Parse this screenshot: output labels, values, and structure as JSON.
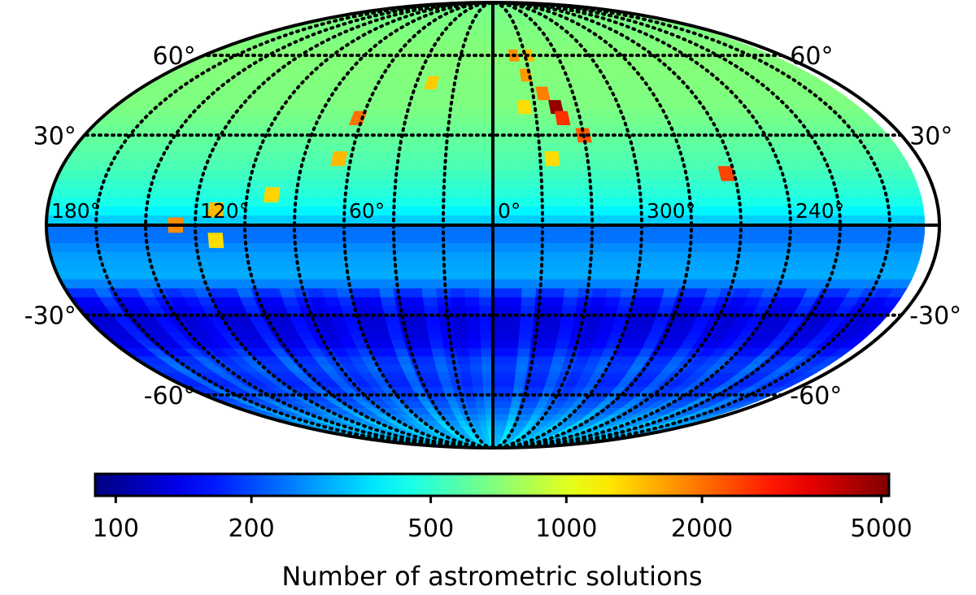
{
  "chart_data": {
    "type": "heatmap",
    "projection": "mollweide",
    "title": "",
    "colormap": "jet",
    "color_scale": "log",
    "value_range": [
      90,
      5200
    ],
    "colorbar": {
      "label": "Number of astrometric solutions",
      "ticks": [
        {
          "value": 100,
          "label": "100"
        },
        {
          "value": 200,
          "label": "200"
        },
        {
          "value": 500,
          "label": "500"
        },
        {
          "value": 1000,
          "label": "1000"
        },
        {
          "value": 2000,
          "label": "2000"
        },
        {
          "value": 5000,
          "label": "5000"
        }
      ]
    },
    "latitude_labels": [
      {
        "value": 60,
        "label": "60°"
      },
      {
        "value": 30,
        "label": "30°"
      },
      {
        "value": -30,
        "label": "-30°"
      },
      {
        "value": -60,
        "label": "-60°"
      }
    ],
    "longitude_labels": [
      {
        "value": 180,
        "label": "180°"
      },
      {
        "value": 120,
        "label": "120°"
      },
      {
        "value": 60,
        "label": "60°"
      },
      {
        "value": 0,
        "label": "0°"
      },
      {
        "value": 300,
        "label": "300°"
      },
      {
        "value": 240,
        "label": "240°"
      }
    ],
    "graticule": {
      "meridian_step_deg": 20,
      "parallels_deg": [
        -60,
        -30,
        30,
        60
      ],
      "style": "dotted"
    },
    "background_by_latitude": [
      {
        "lat": 90,
        "value": 650
      },
      {
        "lat": 60,
        "value": 700
      },
      {
        "lat": 40,
        "value": 680
      },
      {
        "lat": 20,
        "value": 560
      },
      {
        "lat": 8,
        "value": 460
      },
      {
        "lat": 2,
        "value": 360
      },
      {
        "lat": -2,
        "value": 220
      },
      {
        "lat": -10,
        "value": 280
      },
      {
        "lat": -18,
        "value": 300
      },
      {
        "lat": -24,
        "value": 150
      },
      {
        "lat": -32,
        "value": 125
      },
      {
        "lat": -40,
        "value": 135
      },
      {
        "lat": -48,
        "value": 190
      },
      {
        "lat": -55,
        "value": 170
      },
      {
        "lat": -65,
        "value": 210
      },
      {
        "lat": -75,
        "value": 280
      },
      {
        "lat": -90,
        "value": 330
      }
    ],
    "bright_regions": [
      {
        "lon": 330,
        "lat": 40,
        "value": 4800
      },
      {
        "lon": 328,
        "lat": 36,
        "value": 2600
      },
      {
        "lon": 320,
        "lat": 30,
        "value": 2200
      },
      {
        "lon": 335,
        "lat": 45,
        "value": 1900
      },
      {
        "lon": 342,
        "lat": 52,
        "value": 1700
      },
      {
        "lon": 347,
        "lat": 60,
        "value": 1800
      },
      {
        "lon": 338,
        "lat": 60,
        "value": 1500
      },
      {
        "lon": 345,
        "lat": 40,
        "value": 1300
      },
      {
        "lon": 335,
        "lat": 22,
        "value": 1300
      },
      {
        "lon": 32,
        "lat": 49,
        "value": 1400
      },
      {
        "lon": 90,
        "lat": 10,
        "value": 1350
      },
      {
        "lon": 65,
        "lat": 22,
        "value": 1500
      },
      {
        "lon": 112,
        "lat": 5,
        "value": 1500
      },
      {
        "lon": 128,
        "lat": 0,
        "value": 1800
      },
      {
        "lon": 62,
        "lat": 36,
        "value": 2000
      },
      {
        "lon": 263,
        "lat": 17,
        "value": 2400
      },
      {
        "lon": 112,
        "lat": -5,
        "value": 1300
      }
    ]
  }
}
